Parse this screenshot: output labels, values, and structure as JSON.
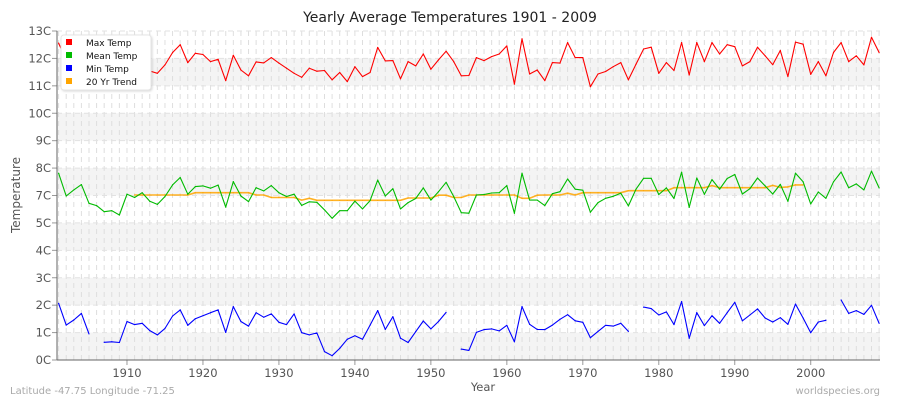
{
  "chart_data": {
    "type": "line",
    "title": "Yearly Average Temperatures 1901 - 2009",
    "xlabel": "Year",
    "ylabel": "Temperature",
    "xlim": [
      1901,
      2009
    ],
    "ylim": [
      0,
      13
    ],
    "x_ticks": [
      1910,
      1920,
      1930,
      1940,
      1950,
      1960,
      1970,
      1980,
      1990,
      2000
    ],
    "y_tick_labels": [
      "0C",
      "1C",
      "2C",
      "3C",
      "4C",
      "5C",
      "7C",
      "8C",
      "9C",
      "10C",
      "11C",
      "12C",
      "13C"
    ],
    "grid": true,
    "legend_position": "top-left",
    "x": [
      1901,
      1902,
      1903,
      1904,
      1905,
      1906,
      1907,
      1908,
      1909,
      1910,
      1911,
      1912,
      1913,
      1914,
      1915,
      1916,
      1917,
      1918,
      1919,
      1920,
      1921,
      1922,
      1923,
      1924,
      1925,
      1926,
      1927,
      1928,
      1929,
      1930,
      1931,
      1932,
      1933,
      1934,
      1935,
      1936,
      1937,
      1938,
      1939,
      1940,
      1941,
      1942,
      1943,
      1944,
      1945,
      1946,
      1947,
      1948,
      1949,
      1950,
      1951,
      1952,
      1953,
      1954,
      1955,
      1956,
      1957,
      1958,
      1959,
      1960,
      1961,
      1962,
      1963,
      1964,
      1965,
      1966,
      1967,
      1968,
      1969,
      1970,
      1971,
      1972,
      1973,
      1974,
      1975,
      1976,
      1977,
      1978,
      1979,
      1980,
      1981,
      1982,
      1983,
      1984,
      1985,
      1986,
      1987,
      1988,
      1989,
      1990,
      1991,
      1992,
      1993,
      1994,
      1995,
      1996,
      1997,
      1998,
      1999,
      2000,
      2001,
      2002,
      2003,
      2004,
      2005,
      2006,
      2007,
      2008,
      2009
    ],
    "series": [
      {
        "name": "Max Temp",
        "color": "#ff0000",
        "values": [
          12.52,
          11.85,
          11.5,
          11.6,
          11.4,
          11.5,
          11.3,
          11.6,
          11.4,
          11.5,
          11.45,
          11.4,
          11.42,
          11.33,
          11.66,
          12.15,
          12.46,
          11.75,
          12.12,
          12.07,
          11.79,
          11.88,
          11.04,
          12.04,
          11.46,
          11.23,
          11.78,
          11.74,
          11.95,
          11.73,
          11.53,
          11.33,
          11.17,
          11.53,
          11.41,
          11.44,
          11.07,
          11.36,
          11.0,
          11.59,
          11.2,
          11.36,
          12.35,
          11.82,
          11.83,
          11.11,
          11.79,
          11.62,
          12.09,
          11.49,
          11.86,
          12.2,
          11.79,
          11.23,
          11.24,
          11.95,
          11.83,
          11.99,
          12.09,
          12.41,
          10.9,
          12.69,
          11.3,
          11.46,
          11.04,
          11.75,
          11.73,
          12.54,
          11.95,
          11.95,
          10.8,
          11.3,
          11.4,
          11.59,
          11.75,
          11.07,
          11.69,
          12.29,
          12.36,
          11.33,
          11.75,
          11.44,
          12.54,
          11.26,
          12.54,
          11.79,
          12.54,
          12.09,
          12.46,
          12.38,
          11.62,
          11.79,
          12.36,
          12.02,
          11.67,
          12.23,
          11.2,
          12.56,
          12.48,
          11.29,
          11.79,
          11.23,
          12.15,
          12.54,
          11.79,
          12.02,
          11.66,
          12.75,
          12.15
        ]
      },
      {
        "name": "Mean Temp",
        "color": "#00bb00",
        "values": [
          7.38,
          6.48,
          6.72,
          6.93,
          6.19,
          6.1,
          5.86,
          5.9,
          5.73,
          6.55,
          6.42,
          6.61,
          6.27,
          6.15,
          6.46,
          6.92,
          7.21,
          6.55,
          6.85,
          6.88,
          6.79,
          6.91,
          6.04,
          7.05,
          6.48,
          6.26,
          6.81,
          6.68,
          6.89,
          6.61,
          6.46,
          6.55,
          6.11,
          6.25,
          6.23,
          5.93,
          5.6,
          5.9,
          5.9,
          6.28,
          5.97,
          6.3,
          7.11,
          6.48,
          6.77,
          5.97,
          6.22,
          6.38,
          6.8,
          6.32,
          6.65,
          7.02,
          6.46,
          5.82,
          5.8,
          6.52,
          6.54,
          6.6,
          6.61,
          6.89,
          5.8,
          7.38,
          6.32,
          6.32,
          6.1,
          6.57,
          6.65,
          7.15,
          6.75,
          6.71,
          5.84,
          6.22,
          6.39,
          6.47,
          6.59,
          6.09,
          6.75,
          7.18,
          7.18,
          6.54,
          6.8,
          6.38,
          7.42,
          6.03,
          7.19,
          6.55,
          7.13,
          6.75,
          7.17,
          7.33,
          6.56,
          6.77,
          7.19,
          6.88,
          6.56,
          6.94,
          6.27,
          7.38,
          7.04,
          6.17,
          6.64,
          6.39,
          7.04,
          7.43,
          6.81,
          6.96,
          6.72,
          7.46,
          6.8
        ]
      },
      {
        "name": "Min Temp",
        "color": "#0000ff",
        "values": [
          2.24,
          1.38,
          1.58,
          1.84,
          1.03,
          null,
          0.7,
          0.72,
          0.69,
          1.52,
          1.4,
          1.45,
          1.16,
          0.99,
          1.25,
          1.74,
          1.98,
          1.37,
          1.63,
          1.75,
          1.87,
          1.98,
          1.09,
          2.11,
          1.52,
          1.34,
          1.87,
          1.69,
          1.82,
          1.49,
          1.4,
          1.82,
          1.08,
          0.99,
          1.07,
          0.33,
          0.17,
          0.46,
          0.82,
          0.96,
          0.82,
          1.38,
          1.95,
          1.21,
          1.71,
          0.86,
          0.69,
          1.12,
          1.54,
          1.23,
          1.52,
          1.88,
          null,
          0.43,
          0.38,
          1.09,
          1.2,
          1.23,
          1.15,
          1.37,
          0.72,
          2.11,
          1.41,
          1.21,
          1.2,
          1.38,
          1.61,
          1.79,
          1.55,
          1.49,
          0.88,
          1.13,
          1.37,
          1.34,
          1.45,
          1.13,
          null,
          2.09,
          2.03,
          1.78,
          1.9,
          1.4,
          2.31,
          0.86,
          1.87,
          1.36,
          1.75,
          1.45,
          1.87,
          2.28,
          1.55,
          1.78,
          2.02,
          1.66,
          1.5,
          1.67,
          1.41,
          2.21,
          1.66,
          1.08,
          1.5,
          1.57,
          null,
          2.37,
          1.84,
          1.95,
          1.8,
          2.16,
          1.45
        ]
      },
      {
        "name": "20 Yr Trend",
        "color": "#ffa500",
        "values": [
          null,
          null,
          null,
          null,
          null,
          null,
          null,
          null,
          null,
          null,
          6.52,
          6.52,
          6.52,
          6.52,
          6.52,
          6.52,
          6.52,
          6.52,
          6.61,
          6.61,
          6.61,
          6.61,
          6.61,
          6.61,
          6.61,
          6.61,
          6.52,
          6.52,
          6.42,
          6.42,
          6.42,
          6.42,
          6.32,
          6.39,
          6.31,
          6.31,
          6.31,
          6.31,
          6.31,
          6.31,
          6.31,
          6.31,
          6.31,
          6.31,
          6.31,
          6.31,
          6.4,
          6.4,
          6.4,
          6.4,
          6.51,
          6.51,
          6.42,
          6.42,
          6.52,
          6.52,
          6.52,
          6.52,
          6.52,
          6.52,
          6.52,
          6.39,
          6.39,
          6.51,
          6.52,
          6.52,
          6.52,
          6.59,
          6.52,
          6.61,
          6.61,
          6.61,
          6.61,
          6.61,
          6.61,
          6.69,
          6.69,
          6.69,
          6.69,
          6.69,
          6.69,
          6.81,
          6.81,
          6.81,
          6.81,
          6.81,
          6.89,
          6.81,
          6.81,
          6.81,
          6.81,
          6.81,
          6.81,
          6.81,
          6.9,
          6.82,
          6.84,
          6.92,
          6.92,
          null,
          null,
          null,
          null,
          null,
          null,
          null,
          null,
          null,
          null
        ]
      }
    ]
  },
  "footer": {
    "location": "Latitude -47.75 Longitude -71.25",
    "source": "worldspecies.org"
  }
}
